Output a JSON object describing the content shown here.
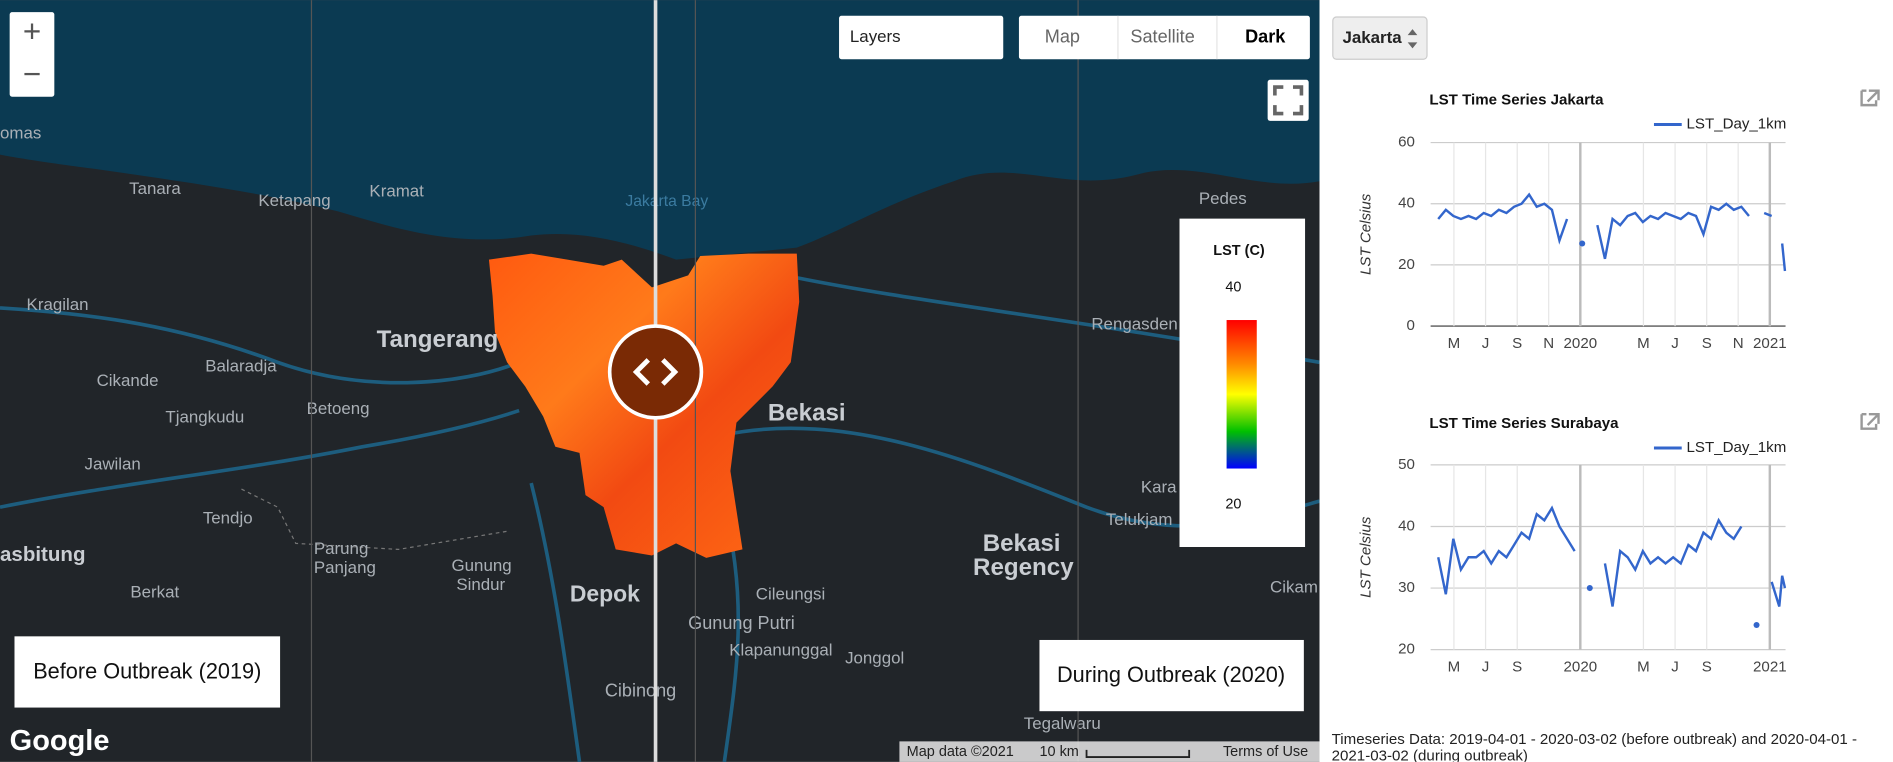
{
  "map": {
    "zoom_in": "+",
    "zoom_out": "−",
    "layers": "Layers",
    "map_types": [
      "Map",
      "Satellite",
      "Dark"
    ],
    "labels": [
      "omas",
      "Tanara",
      "Ketapang",
      "Kramat",
      "Jakarta Bay",
      "Pedes",
      "Kragilan",
      "Tangerang",
      "Rengasden",
      "Balaradja",
      "Cikande",
      "Tjangkudu",
      "Betoeng",
      "Bekasi",
      "Jawilan",
      "Tendjo",
      "Parung",
      "Panjang",
      "Gunung",
      "Sindur",
      "asbitung",
      "Berkat",
      "Bekasi",
      "Regency",
      "Depok",
      "Cileungsi",
      "Gunung Putri",
      "Klapanunggal",
      "Jonggol",
      "Cibinong",
      "Telukjam",
      "Kara",
      "Cikam",
      "Tegalwaru"
    ],
    "legend": {
      "title": "LST (C)",
      "max": 40,
      "min": 20
    },
    "left_label": "Before Outbreak (2019)",
    "right_label": "During Outbreak (2020)",
    "google": "Google",
    "attribution": [
      "Map data ©2021",
      "10 km",
      "Terms of Use"
    ]
  },
  "sidebar": {
    "city": "Jakarta",
    "footnote": "Timeseries Data: 2019-04-01 - 2020-03-02 (before outbreak) and 2020-04-01 - 2021-03-02 (during outbreak)"
  },
  "chart_data": [
    {
      "type": "line",
      "title": "LST Time Series Jakarta",
      "ylabel": "LST Celsius",
      "grid": true,
      "legend": "top-right",
      "x": [
        2019.25,
        2019.29,
        2019.33,
        2019.37,
        2019.41,
        2019.45,
        2019.49,
        2019.53,
        2019.57,
        2019.61,
        2019.65,
        2019.69,
        2019.73,
        2019.77,
        2019.81,
        2019.85,
        2019.89,
        2019.93,
        2019.97,
        2020.01,
        2020.05,
        2020.09,
        2020.13,
        2020.17,
        2020.21,
        2020.25,
        2020.29,
        2020.33,
        2020.37,
        2020.41,
        2020.45,
        2020.49,
        2020.53,
        2020.57,
        2020.61,
        2020.65,
        2020.69,
        2020.73,
        2020.77,
        2020.81,
        2020.85,
        2020.89,
        2020.93,
        2020.97,
        2021.01,
        2021.05,
        2021.065,
        2021.08
      ],
      "series": [
        {
          "name": "LST_Day_1km",
          "color": "#3366cc",
          "values": [
            35,
            38,
            36,
            35,
            36,
            35,
            37,
            36,
            38,
            37,
            39,
            40,
            43,
            39,
            40,
            38,
            28,
            35,
            null,
            27,
            null,
            33,
            22,
            35,
            33,
            36,
            37,
            34,
            36,
            35,
            37,
            36,
            35,
            37,
            36,
            30,
            39,
            38,
            40,
            38,
            39,
            36,
            null,
            37,
            36,
            null,
            27,
            18
          ]
        }
      ],
      "xlim": [
        2019.21,
        2021.083
      ],
      "xticks": [
        {
          "value": 2019.333,
          "label": "M"
        },
        {
          "value": 2019.5,
          "label": "J"
        },
        {
          "value": 2019.667,
          "label": "S"
        },
        {
          "value": 2019.833,
          "label": "N"
        },
        2020,
        {
          "value": 2020.333,
          "label": "M"
        },
        {
          "value": 2020.5,
          "label": "J"
        },
        {
          "value": 2020.667,
          "label": "S"
        },
        {
          "value": 2020.833,
          "label": "N"
        },
        2021
      ],
      "ylim": [
        0,
        60
      ],
      "yticks": [
        0,
        20,
        40,
        60
      ]
    },
    {
      "type": "line",
      "title": "LST Time Series Surabaya",
      "ylabel": "LST Celsius",
      "grid": true,
      "legend": "top-right",
      "x": [
        2019.25,
        2019.29,
        2019.33,
        2019.37,
        2019.41,
        2019.45,
        2019.49,
        2019.53,
        2019.57,
        2019.61,
        2019.65,
        2019.69,
        2019.73,
        2019.77,
        2019.81,
        2019.85,
        2019.89,
        2019.93,
        2019.97,
        2020.01,
        2020.05,
        2020.09,
        2020.13,
        2020.17,
        2020.21,
        2020.25,
        2020.29,
        2020.33,
        2020.37,
        2020.41,
        2020.45,
        2020.49,
        2020.53,
        2020.57,
        2020.61,
        2020.65,
        2020.69,
        2020.73,
        2020.77,
        2020.81,
        2020.85,
        2020.89,
        2020.93,
        2020.97,
        2021.01,
        2021.05,
        2021.065,
        2021.08
      ],
      "series": [
        {
          "name": "LST_Day_1km",
          "color": "#3366cc",
          "values": [
            35,
            29,
            38,
            33,
            35,
            35,
            36,
            34,
            36,
            35,
            37,
            39,
            38,
            42,
            41,
            43,
            40,
            38,
            36,
            null,
            30,
            null,
            34,
            27,
            36,
            35,
            33,
            36,
            34,
            35,
            34,
            35,
            34,
            37,
            36,
            39,
            38,
            41,
            39,
            38,
            40,
            null,
            24,
            null,
            31,
            27,
            32,
            30
          ]
        }
      ],
      "xlim": [
        2019.21,
        2021.083
      ],
      "xticks": [
        {
          "value": 2019.333,
          "label": "M"
        },
        {
          "value": 2019.5,
          "label": "J"
        },
        {
          "value": 2019.667,
          "label": "S"
        },
        2020,
        {
          "value": 2020.333,
          "label": "M"
        },
        {
          "value": 2020.5,
          "label": "J"
        },
        {
          "value": 2020.667,
          "label": "S"
        },
        2021
      ],
      "ylim": [
        20,
        50
      ],
      "yticks": [
        20,
        30,
        40,
        50
      ]
    }
  ]
}
